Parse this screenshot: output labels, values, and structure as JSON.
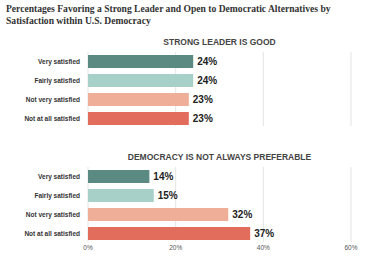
{
  "title": "Percentages Favoring a Strong Leader and Open to Democratic Alternatives by Satisfaction within U.S. Democracy",
  "chart_data": [
    {
      "type": "bar",
      "orientation": "horizontal",
      "title": "STRONG LEADER IS GOOD",
      "categories": [
        "Very satisfied",
        "Fairly satisfied",
        "Not very satisfied",
        "Not at all satisfied"
      ],
      "values": [
        24,
        24,
        23,
        23
      ],
      "value_labels": [
        "24%",
        "24%",
        "23%",
        "23%"
      ],
      "colors": [
        "#5b8a83",
        "#a7d0c8",
        "#eeae98",
        "#e36d5d"
      ],
      "xlim": [
        0,
        60
      ],
      "xticks": [
        {
          "value": 0,
          "label": "0%"
        },
        {
          "value": 20,
          "label": "20%"
        },
        {
          "value": 40,
          "label": "40%"
        },
        {
          "value": 60,
          "label": "60%"
        }
      ],
      "grid": true,
      "data_labels": true,
      "tick_labels": "y"
    },
    {
      "type": "bar",
      "orientation": "horizontal",
      "title": "DEMOCRACY IS NOT ALWAYS PREFERABLE",
      "categories": [
        "Very satisfied",
        "Fairly satisfied",
        "Not very satisfied",
        "Not at all satisfied"
      ],
      "values": [
        14,
        15,
        32,
        37
      ],
      "value_labels": [
        "14%",
        "15%",
        "32%",
        "37%"
      ],
      "colors": [
        "#5b8a83",
        "#a7d0c8",
        "#eeae98",
        "#e36d5d"
      ],
      "xlim": [
        0,
        60
      ],
      "xticks": [
        {
          "value": 0,
          "label": "0%"
        },
        {
          "value": 20,
          "label": "20%"
        },
        {
          "value": 40,
          "label": "40%"
        },
        {
          "value": 60,
          "label": "60%"
        }
      ],
      "grid": true,
      "data_labels": true
    }
  ]
}
